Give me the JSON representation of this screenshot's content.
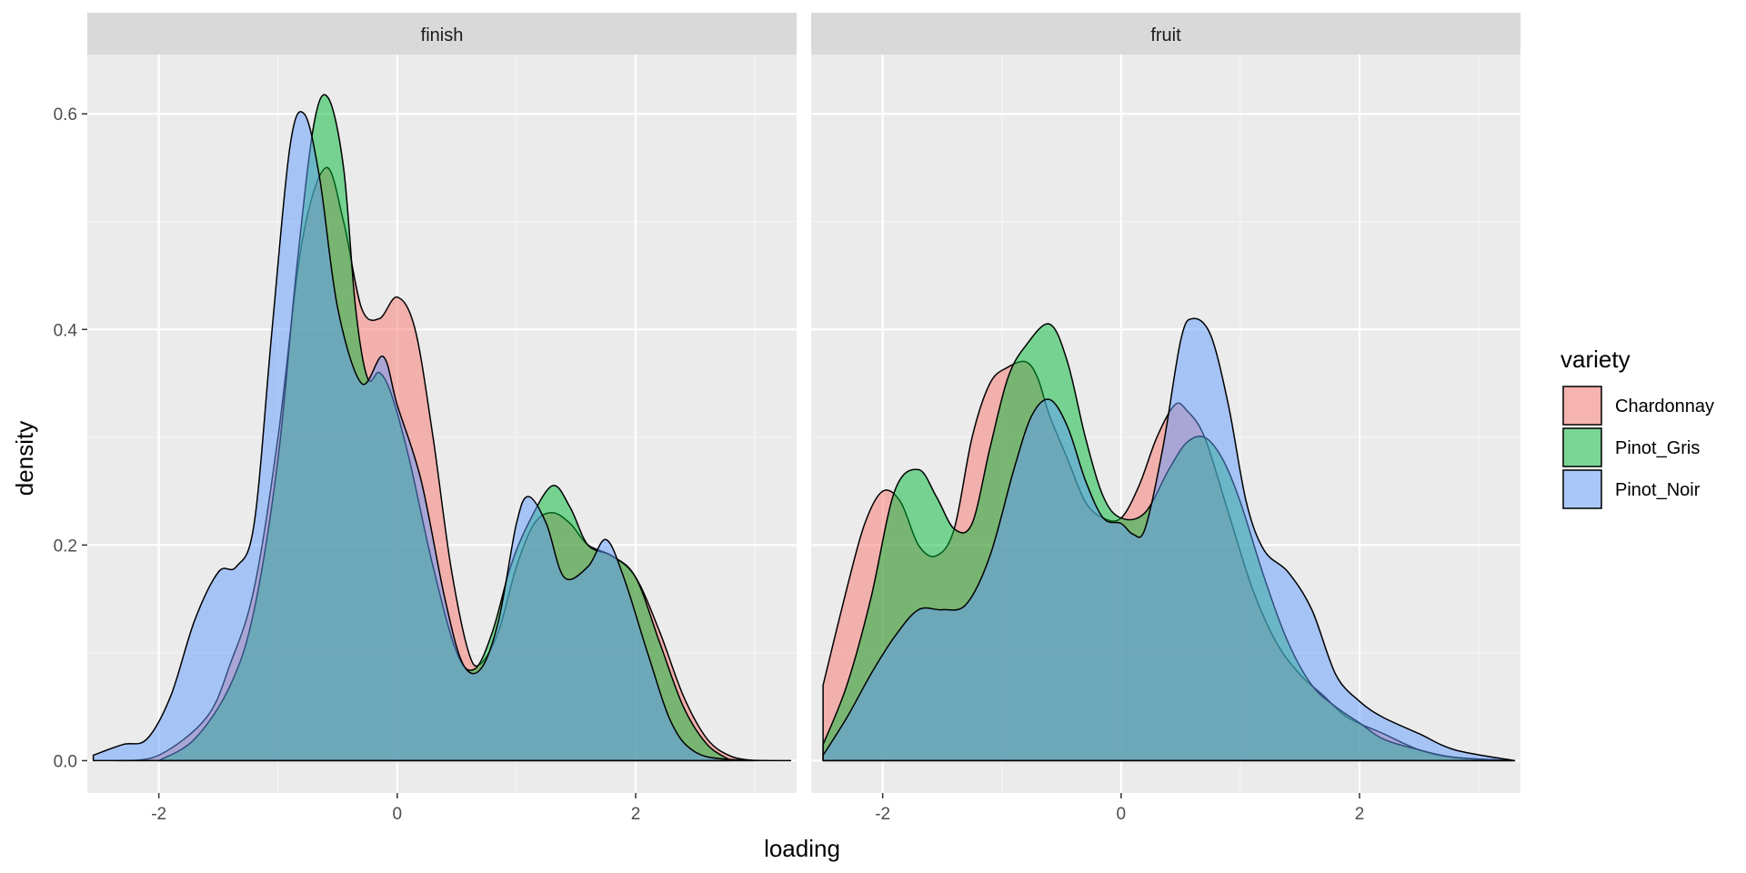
{
  "chart_data": {
    "type": "area",
    "xlabel": "loading",
    "ylabel": "density",
    "xlim": [
      -2.6,
      3.35
    ],
    "ylim": [
      -0.03,
      0.655
    ],
    "x_ticks": [
      -2,
      0,
      2
    ],
    "x_tick_labels": [
      "-2",
      "0",
      "2"
    ],
    "y_ticks": [
      0.0,
      0.2,
      0.4,
      0.6
    ],
    "y_tick_labels": [
      "0.0",
      "0.2",
      "0.4",
      "0.6"
    ],
    "grid": true,
    "legend": {
      "title": "variety",
      "placement": "right",
      "entries": [
        {
          "label": "Chardonnay",
          "color": "#F8766D"
        },
        {
          "label": "Pinot_Gris",
          "color": "#00BA38"
        },
        {
          "label": "Pinot_Noir",
          "color": "#619CFF"
        }
      ]
    },
    "facets": [
      {
        "label": "finish",
        "series": [
          {
            "name": "Chardonnay",
            "color": "#F8766D",
            "x": [
              -2.35,
              -2.0,
              -1.6,
              -1.4,
              -1.2,
              -1.0,
              -0.8,
              -0.6,
              -0.45,
              -0.3,
              -0.15,
              0.0,
              0.15,
              0.3,
              0.45,
              0.6,
              0.7,
              0.85,
              1.0,
              1.15,
              1.3,
              1.45,
              1.6,
              1.8,
              2.0,
              2.2,
              2.4,
              2.6,
              2.8,
              3.0
            ],
            "y": [
              0.0,
              0.005,
              0.04,
              0.09,
              0.16,
              0.3,
              0.48,
              0.55,
              0.5,
              0.42,
              0.41,
              0.43,
              0.4,
              0.3,
              0.18,
              0.1,
              0.09,
              0.12,
              0.18,
              0.22,
              0.23,
              0.22,
              0.2,
              0.19,
              0.17,
              0.12,
              0.06,
              0.02,
              0.004,
              0.0
            ]
          },
          {
            "name": "Pinot_Gris",
            "color": "#00BA38",
            "x": [
              -2.0,
              -1.7,
              -1.4,
              -1.2,
              -1.0,
              -0.85,
              -0.7,
              -0.58,
              -0.45,
              -0.35,
              -0.25,
              -0.15,
              -0.05,
              0.1,
              0.3,
              0.5,
              0.65,
              0.8,
              0.95,
              1.1,
              1.3,
              1.45,
              1.6,
              1.8,
              2.0,
              2.2,
              2.4,
              2.6,
              2.8
            ],
            "y": [
              0.0,
              0.02,
              0.07,
              0.14,
              0.28,
              0.45,
              0.59,
              0.615,
              0.55,
              0.42,
              0.355,
              0.36,
              0.34,
              0.28,
              0.18,
              0.1,
              0.085,
              0.12,
              0.18,
              0.22,
              0.255,
              0.235,
              0.2,
              0.19,
              0.17,
              0.11,
              0.05,
              0.015,
              0.0
            ]
          },
          {
            "name": "Pinot_Noir",
            "color": "#619CFF",
            "x": [
              -2.55,
              -2.3,
              -2.1,
              -1.9,
              -1.7,
              -1.5,
              -1.35,
              -1.2,
              -1.05,
              -0.9,
              -0.78,
              -0.65,
              -0.5,
              -0.3,
              -0.12,
              0.0,
              0.2,
              0.4,
              0.55,
              0.7,
              0.85,
              1.0,
              1.1,
              1.25,
              1.4,
              1.6,
              1.75,
              1.9,
              2.1,
              2.3,
              2.5,
              2.8,
              3.3
            ],
            "y": [
              0.005,
              0.015,
              0.02,
              0.06,
              0.13,
              0.175,
              0.18,
              0.22,
              0.4,
              0.57,
              0.6,
              0.54,
              0.42,
              0.35,
              0.375,
              0.33,
              0.26,
              0.15,
              0.09,
              0.085,
              0.13,
              0.22,
              0.245,
              0.22,
              0.17,
              0.18,
              0.205,
              0.17,
              0.1,
              0.035,
              0.008,
              0.001,
              0.0
            ]
          }
        ]
      },
      {
        "label": "fruit",
        "series": [
          {
            "name": "Chardonnay",
            "color": "#F8766D",
            "x": [
              -2.5,
              -2.3,
              -2.15,
              -2.0,
              -1.85,
              -1.7,
              -1.55,
              -1.4,
              -1.25,
              -1.1,
              -0.95,
              -0.8,
              -0.7,
              -0.6,
              -0.45,
              -0.3,
              -0.15,
              0.0,
              0.15,
              0.3,
              0.45,
              0.55,
              0.7,
              0.9,
              1.1,
              1.3,
              1.5,
              1.7,
              1.9,
              2.2,
              2.5,
              2.8,
              3.3
            ],
            "y": [
              0.07,
              0.16,
              0.22,
              0.25,
              0.24,
              0.2,
              0.19,
              0.215,
              0.3,
              0.35,
              0.365,
              0.37,
              0.355,
              0.32,
              0.28,
              0.24,
              0.225,
              0.225,
              0.255,
              0.3,
              0.33,
              0.325,
              0.3,
              0.23,
              0.16,
              0.11,
              0.08,
              0.06,
              0.04,
              0.025,
              0.01,
              0.003,
              0.0
            ]
          },
          {
            "name": "Pinot_Gris",
            "color": "#00BA38",
            "x": [
              -2.5,
              -2.3,
              -2.1,
              -1.9,
              -1.7,
              -1.55,
              -1.4,
              -1.25,
              -1.1,
              -0.95,
              -0.8,
              -0.6,
              -0.45,
              -0.3,
              -0.15,
              0.0,
              0.2,
              0.4,
              0.55,
              0.7,
              0.85,
              1.0,
              1.2,
              1.4,
              1.6,
              1.8,
              2.0,
              2.2,
              2.5,
              2.8,
              3.3
            ],
            "y": [
              0.015,
              0.07,
              0.15,
              0.25,
              0.27,
              0.245,
              0.215,
              0.22,
              0.29,
              0.355,
              0.385,
              0.405,
              0.37,
              0.3,
              0.245,
              0.225,
              0.23,
              0.27,
              0.295,
              0.3,
              0.28,
              0.24,
              0.17,
              0.11,
              0.07,
              0.05,
              0.035,
              0.02,
              0.01,
              0.003,
              0.0
            ]
          },
          {
            "name": "Pinot_Noir",
            "color": "#619CFF",
            "x": [
              -2.5,
              -2.3,
              -2.1,
              -1.9,
              -1.7,
              -1.5,
              -1.3,
              -1.1,
              -0.9,
              -0.75,
              -0.6,
              -0.45,
              -0.3,
              -0.15,
              0.0,
              0.1,
              0.2,
              0.35,
              0.5,
              0.6,
              0.75,
              0.9,
              1.05,
              1.2,
              1.4,
              1.6,
              1.8,
              2.0,
              2.2,
              2.5,
              2.8,
              3.3
            ],
            "y": [
              0.005,
              0.04,
              0.08,
              0.115,
              0.14,
              0.14,
              0.145,
              0.19,
              0.27,
              0.32,
              0.335,
              0.31,
              0.26,
              0.225,
              0.22,
              0.21,
              0.215,
              0.29,
              0.39,
              0.41,
              0.395,
              0.33,
              0.24,
              0.195,
              0.175,
              0.14,
              0.08,
              0.055,
              0.04,
              0.025,
              0.01,
              0.0
            ]
          }
        ]
      }
    ]
  }
}
